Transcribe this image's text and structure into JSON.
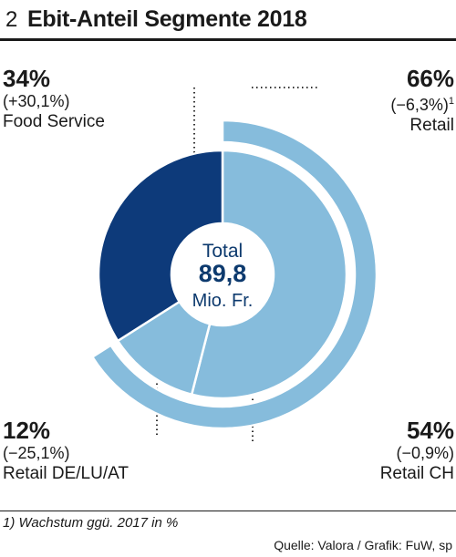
{
  "header": {
    "number": "2",
    "title": "Ebit-Anteil Segmente 2018"
  },
  "center": {
    "label": "Total",
    "value": "89,8",
    "unit": "Mio. Fr."
  },
  "labels": {
    "food_service": {
      "pct": "34%",
      "growth": "(+30,1%)",
      "name": "Food Service"
    },
    "retail": {
      "pct": "66%",
      "growth": "(−6,3%)",
      "growth_sup": "1",
      "name": "Retail"
    },
    "retail_de": {
      "pct": "12%",
      "growth": "(−25,1%)",
      "name": "Retail DE/LU/AT"
    },
    "retail_ch": {
      "pct": "54%",
      "growth": "(−0,9%)",
      "name": "Retail CH"
    }
  },
  "footnote": "1) Wachstum ggü. 2017 in %",
  "source": "Quelle: Valora / Grafik: FuW, sp",
  "chart_data": {
    "type": "pie",
    "inner": {
      "categories": [
        "Retail CH",
        "Retail DE/LU/AT",
        "Food Service"
      ],
      "values": [
        54,
        12,
        34
      ],
      "growth": [
        -0.9,
        -25.1,
        30.1
      ],
      "colors": [
        "#86bcdc",
        "#86bcdc",
        "#0d3a7a"
      ]
    },
    "outer": {
      "categories": [
        "Retail"
      ],
      "values": [
        66
      ],
      "growth": [
        -6.3
      ],
      "colors": [
        "#86bcdc"
      ]
    },
    "total": 89.8,
    "unit": "Mio. Fr."
  }
}
